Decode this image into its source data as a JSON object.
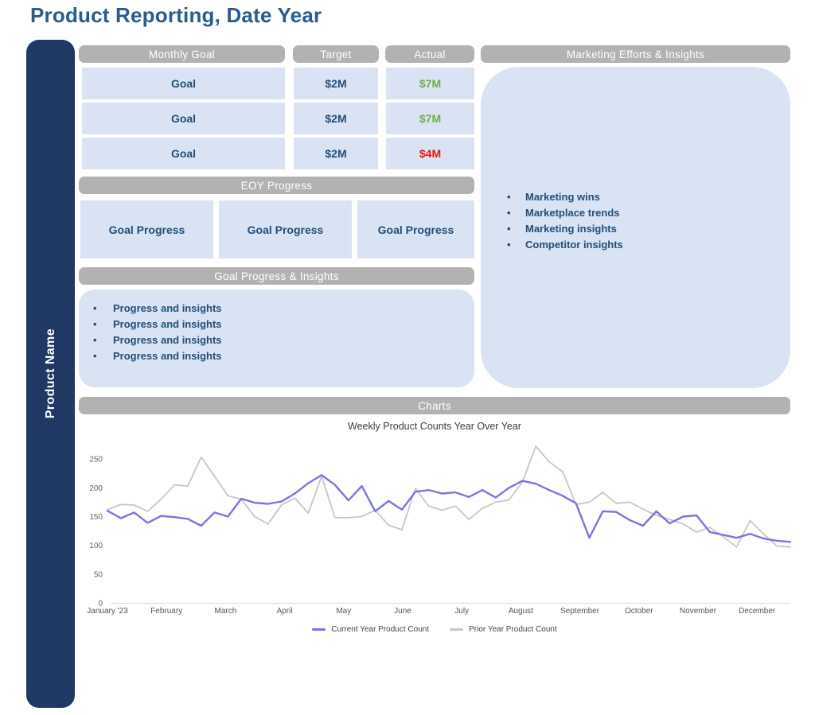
{
  "page": {
    "title": "Product Reporting, Date Year"
  },
  "sidebar": {
    "label": "Product Name"
  },
  "monthly_goal_table": {
    "headers": {
      "goal": "Monthly Goal",
      "target": "Target",
      "actual": "Actual"
    },
    "rows": [
      {
        "goal": "Goal",
        "target": "$2M",
        "actual": "$7M",
        "actual_status": "good"
      },
      {
        "goal": "Goal",
        "target": "$2M",
        "actual": "$7M",
        "actual_status": "good"
      },
      {
        "goal": "Goal",
        "target": "$2M",
        "actual": "$4M",
        "actual_status": "bad"
      }
    ]
  },
  "eoy_progress": {
    "header": "EOY Progress",
    "boxes": [
      "Goal Progress",
      "Goal Progress",
      "Goal Progress"
    ]
  },
  "goal_progress_insights": {
    "header": "Goal Progress & Insights",
    "bullets": [
      "Progress and insights",
      "Progress and insights",
      "Progress and insights",
      "Progress and insights"
    ]
  },
  "marketing": {
    "header": "Marketing Efforts & Insights",
    "bullets": [
      "Marketing wins",
      "Marketplace trends",
      "Marketing insights",
      "Competitor insights"
    ]
  },
  "charts_section": {
    "header": "Charts"
  },
  "chart_data": {
    "type": "line",
    "title": "Weekly Product Counts Year Over Year",
    "x_unit": "week",
    "x_tick_labels": [
      "January '23",
      "February",
      "March",
      "April",
      "May",
      "June",
      "July",
      "August",
      "September",
      "October",
      "November",
      "December"
    ],
    "y_ticks": [
      0,
      50,
      100,
      150,
      200,
      250
    ],
    "ylim": [
      0,
      250
    ],
    "grid": false,
    "legend_position": "bottom",
    "series": [
      {
        "name": "Current Year Product Count",
        "color": "#7B73E4",
        "values": [
          160,
          147,
          157,
          139,
          151,
          149,
          146,
          134,
          157,
          150,
          181,
          174,
          172,
          176,
          190,
          208,
          222,
          205,
          178,
          203,
          159,
          177,
          162,
          193,
          196,
          190,
          192,
          184,
          196,
          183,
          200,
          212,
          207,
          196,
          186,
          173,
          113,
          159,
          158,
          144,
          134,
          159,
          138,
          150,
          152,
          123,
          118,
          113,
          120,
          112,
          108,
          106
        ]
      },
      {
        "name": "Prior Year Product Count",
        "color": "#C7C7C7",
        "values": [
          162,
          171,
          170,
          159,
          180,
          205,
          203,
          253,
          220,
          186,
          180,
          150,
          137,
          170,
          182,
          156,
          220,
          148,
          148,
          150,
          161,
          135,
          127,
          199,
          168,
          161,
          168,
          145,
          164,
          175,
          179,
          210,
          272,
          245,
          228,
          171,
          175,
          192,
          173,
          175,
          163,
          152,
          145,
          137,
          123,
          131,
          115,
          97,
          143,
          120,
          99,
          97
        ]
      }
    ]
  },
  "colors": {
    "sidebar_navy": "#1F3864",
    "header_gray": "#B2B2B2",
    "cell_blue": "#DAE3F3",
    "text_blue": "#1F4E79",
    "title_blue": "#275C8F",
    "good_green": "#6FAD47",
    "bad_red": "#EE1111"
  }
}
